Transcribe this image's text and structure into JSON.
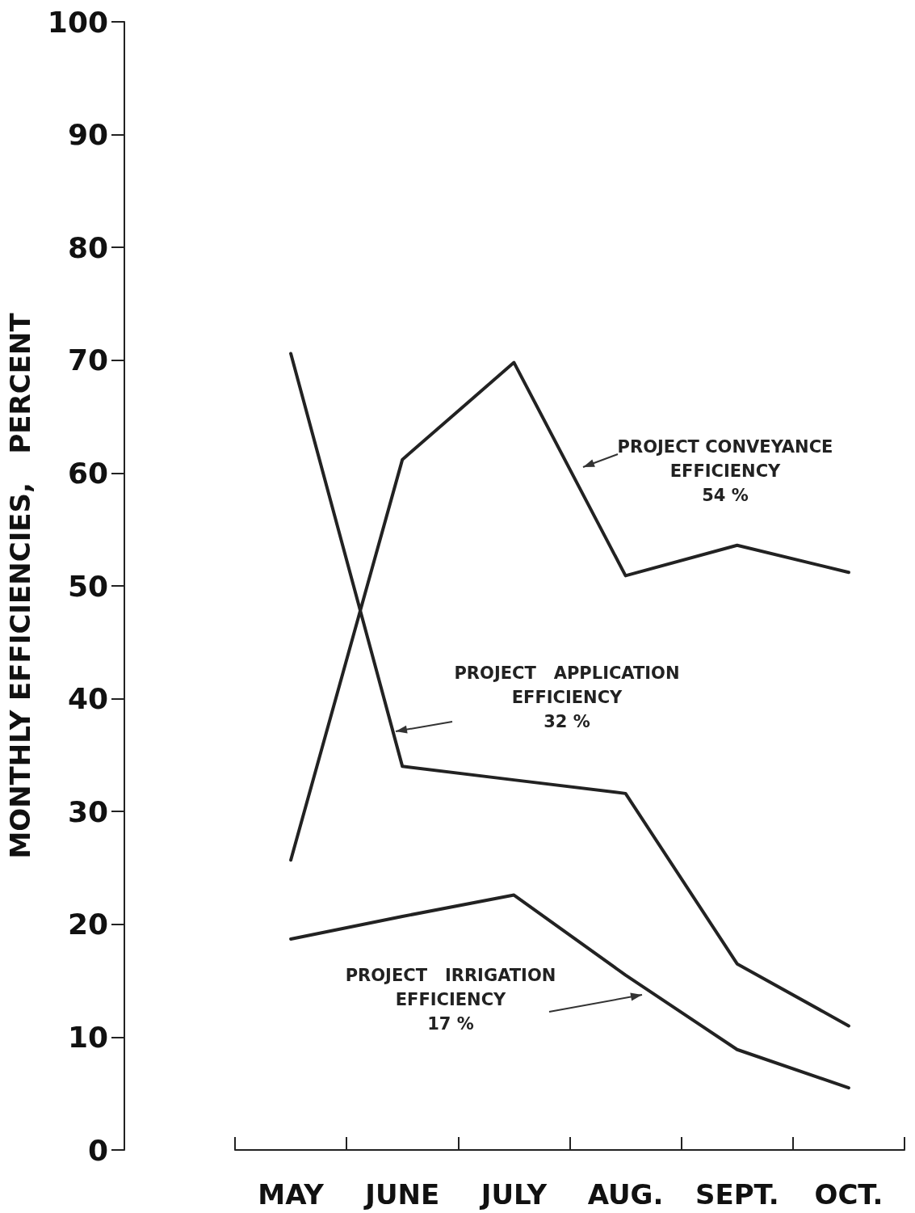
{
  "chart_data": {
    "type": "line",
    "ylabel": "MONTHLY EFFICIENCIES,   PERCENT",
    "categories": [
      "MAY",
      "JUNE",
      "JULY",
      "AUG.",
      "SEPT.",
      "OCT."
    ],
    "series": [
      {
        "color": "#222222",
        "values": [
          25.7,
          61.2,
          69.8,
          50.9,
          53.6,
          51.2
        ]
      },
      {
        "color": "#222222",
        "values": [
          70.6,
          34.0,
          32.8,
          31.6,
          16.5,
          11.0
        ]
      },
      {
        "color": "#222222",
        "values": [
          18.7,
          20.7,
          22.6,
          15.5,
          8.9,
          5.5
        ]
      }
    ],
    "ylim": [
      0,
      100
    ],
    "yticks": [
      0,
      10,
      20,
      30,
      40,
      50,
      60,
      70,
      80,
      90,
      100
    ],
    "grid": false,
    "marker": "none",
    "line_style": "solid",
    "annotations": [
      "PROJECT CONVEYANCE\nEFFICIENCY\n54 %",
      "PROJECT   APPLICATION\nEFFICIENCY\n32 %",
      "PROJECT   IRRIGATION\nEFFICIENCY\n17 %"
    ]
  }
}
